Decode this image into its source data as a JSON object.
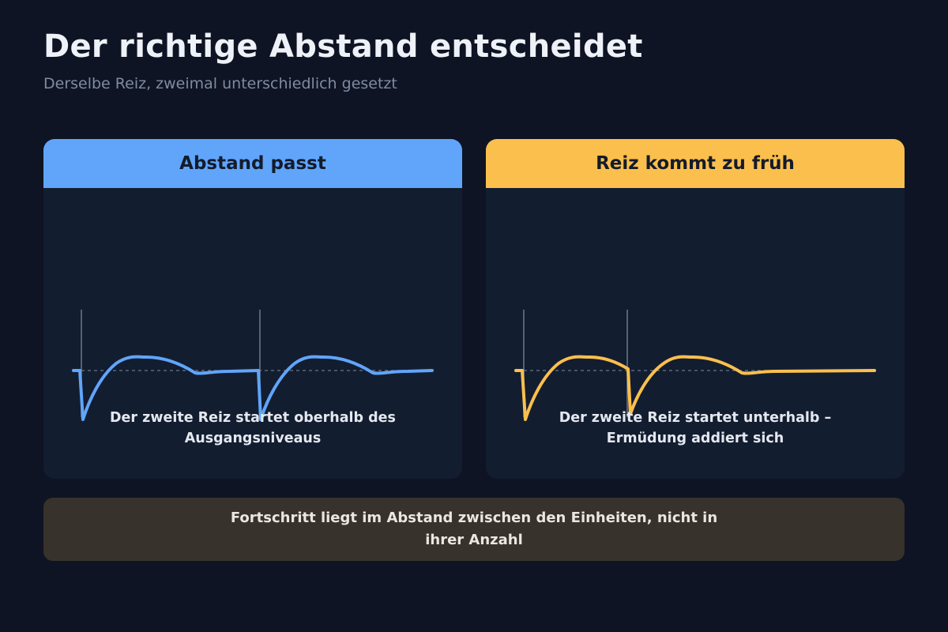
{
  "title": "Der richtige Abstand entscheidet",
  "subtitle": "Derselbe Reiz, zweimal unterschiedlich gesetzt",
  "panels": [
    {
      "header": "Abstand passt",
      "color": "#60a5fa",
      "caption_lines": [
        "Der zweite Reiz startet oberhalb des",
        "Ausgangsniveaus"
      ]
    },
    {
      "header": "Reiz kommt zu früh",
      "color": "#fbbf4d",
      "caption_lines": [
        "Der zweite Reiz startet unterhalb –",
        "Ermüdung addiert sich"
      ]
    }
  ],
  "footer_lines": [
    "Fortschritt liegt im Abstand zwischen den Einheiten, nicht in",
    "ihrer Anzahl"
  ]
}
